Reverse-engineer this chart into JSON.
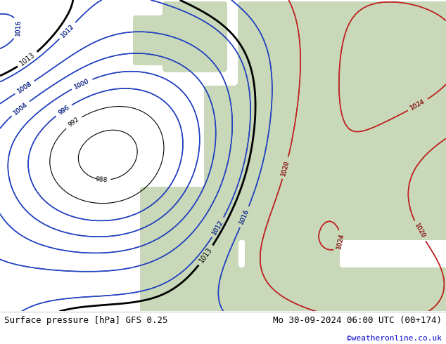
{
  "title_left": "Surface pressure [hPa] GFS 0.25",
  "title_right": "Mo 30-09-2024 06:00 UTC (00+174)",
  "credit": "©weatheronline.co.uk",
  "bg_map_color": "#d8ecd8",
  "bg_sea_color": "#d8e8f0",
  "bg_land_color": "#e8e8d8",
  "footer_bg": "#ffffff",
  "footer_text_color": "#000000",
  "credit_color": "#0000cc",
  "figsize": [
    6.34,
    4.9
  ],
  "dpi": 100
}
